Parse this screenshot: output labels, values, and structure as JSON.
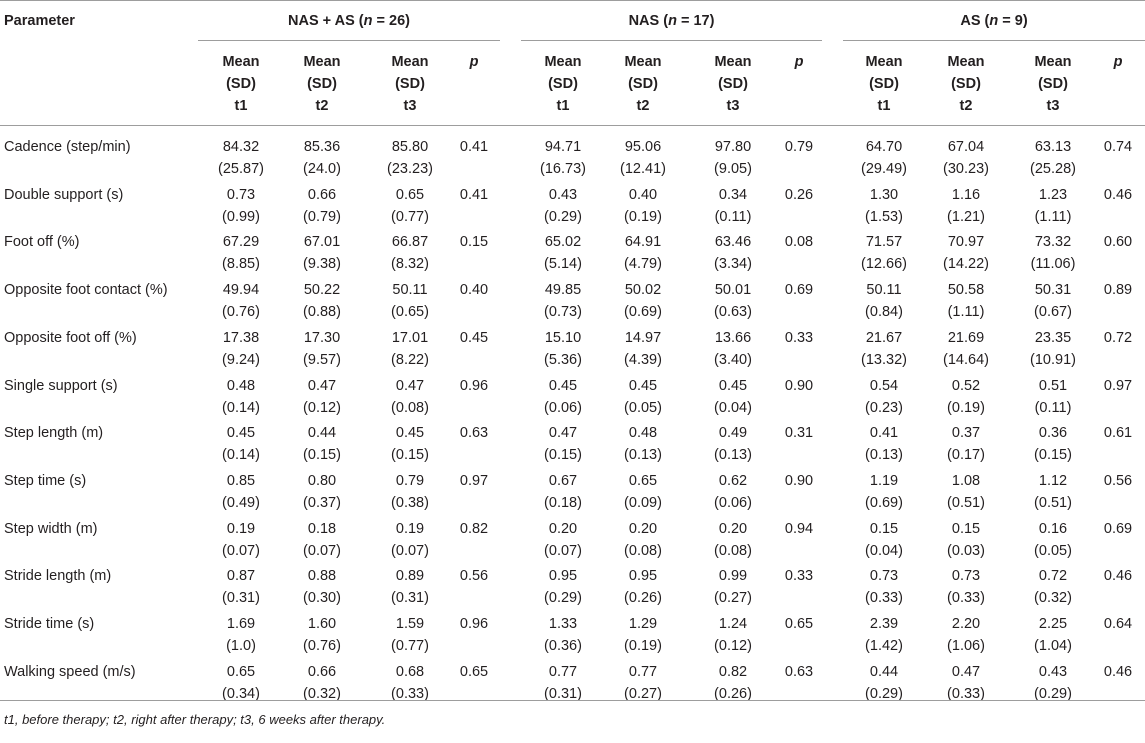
{
  "header": {
    "parameter": "Parameter",
    "groups": [
      {
        "label": "NAS + AS",
        "n_label": "n",
        "n_value": "= 26"
      },
      {
        "label": "NAS",
        "n_label": "n",
        "n_value": "= 17"
      },
      {
        "label": "AS",
        "n_label": "n",
        "n_value": "= 9"
      }
    ],
    "sub": [
      [
        "Mean",
        "(SD)",
        "t1"
      ],
      [
        "Mean",
        "(SD)",
        "t2"
      ],
      [
        "Mean",
        "(SD)",
        "t3"
      ]
    ],
    "p": "p"
  },
  "rows": [
    {
      "name": "Cadence (step/min)",
      "vals": [
        [
          "84.32",
          "(25.87)"
        ],
        [
          "85.36",
          "(24.0)"
        ],
        [
          "85.80",
          "(23.23)"
        ],
        [
          "0.41",
          ""
        ],
        [
          "94.71",
          "(16.73)"
        ],
        [
          "95.06",
          "(12.41)"
        ],
        [
          "97.80",
          "(9.05)"
        ],
        [
          "0.79",
          ""
        ],
        [
          "64.70",
          "(29.49)"
        ],
        [
          "67.04",
          "(30.23)"
        ],
        [
          "63.13",
          "(25.28)"
        ],
        [
          "0.74",
          ""
        ]
      ]
    },
    {
      "name": "Double support (s)",
      "vals": [
        [
          "0.73",
          "(0.99)"
        ],
        [
          "0.66",
          "(0.79)"
        ],
        [
          "0.65",
          "(0.77)"
        ],
        [
          "0.41",
          ""
        ],
        [
          "0.43",
          "(0.29)"
        ],
        [
          "0.40",
          "(0.19)"
        ],
        [
          "0.34",
          "(0.11)"
        ],
        [
          "0.26",
          ""
        ],
        [
          "1.30",
          "(1.53)"
        ],
        [
          "1.16",
          "(1.21)"
        ],
        [
          "1.23",
          "(1.11)"
        ],
        [
          "0.46",
          ""
        ]
      ]
    },
    {
      "name": "Foot off (%)",
      "vals": [
        [
          "67.29",
          "(8.85)"
        ],
        [
          "67.01",
          "(9.38)"
        ],
        [
          "66.87",
          "(8.32)"
        ],
        [
          "0.15",
          ""
        ],
        [
          "65.02",
          "(5.14)"
        ],
        [
          "64.91",
          "(4.79)"
        ],
        [
          "63.46",
          "(3.34)"
        ],
        [
          "0.08",
          ""
        ],
        [
          "71.57",
          "(12.66)"
        ],
        [
          "70.97",
          "(14.22)"
        ],
        [
          "73.32",
          "(11.06)"
        ],
        [
          "0.60",
          ""
        ]
      ]
    },
    {
      "name": "Opposite foot contact (%)",
      "vals": [
        [
          "49.94",
          "(0.76)"
        ],
        [
          "50.22",
          "(0.88)"
        ],
        [
          "50.11",
          "(0.65)"
        ],
        [
          "0.40",
          ""
        ],
        [
          "49.85",
          "(0.73)"
        ],
        [
          "50.02",
          "(0.69)"
        ],
        [
          "50.01",
          "(0.63)"
        ],
        [
          "0.69",
          ""
        ],
        [
          "50.11",
          "(0.84)"
        ],
        [
          "50.58",
          "(1.11)"
        ],
        [
          "50.31",
          "(0.67)"
        ],
        [
          "0.89",
          ""
        ]
      ]
    },
    {
      "name": "Opposite foot off (%)",
      "vals": [
        [
          "17.38",
          "(9.24)"
        ],
        [
          "17.30",
          "(9.57)"
        ],
        [
          "17.01",
          "(8.22)"
        ],
        [
          "0.45",
          ""
        ],
        [
          "15.10",
          "(5.36)"
        ],
        [
          "14.97",
          "(4.39)"
        ],
        [
          "13.66",
          "(3.40)"
        ],
        [
          "0.33",
          ""
        ],
        [
          "21.67",
          "(13.32)"
        ],
        [
          "21.69",
          "(14.64)"
        ],
        [
          "23.35",
          "(10.91)"
        ],
        [
          "0.72",
          ""
        ]
      ]
    },
    {
      "name": "Single support (s)",
      "vals": [
        [
          "0.48",
          "(0.14)"
        ],
        [
          "0.47",
          "(0.12)"
        ],
        [
          "0.47",
          "(0.08)"
        ],
        [
          "0.96",
          ""
        ],
        [
          "0.45",
          "(0.06)"
        ],
        [
          "0.45",
          "(0.05)"
        ],
        [
          "0.45",
          "(0.04)"
        ],
        [
          "0.90",
          ""
        ],
        [
          "0.54",
          "(0.23)"
        ],
        [
          "0.52",
          "(0.19)"
        ],
        [
          "0.51",
          "(0.11)"
        ],
        [
          "0.97",
          ""
        ]
      ]
    },
    {
      "name": "Step length (m)",
      "vals": [
        [
          "0.45",
          "(0.14)"
        ],
        [
          "0.44",
          "(0.15)"
        ],
        [
          "0.45",
          "(0.15)"
        ],
        [
          "0.63",
          ""
        ],
        [
          "0.47",
          "(0.15)"
        ],
        [
          "0.48",
          "(0.13)"
        ],
        [
          "0.49",
          "(0.13)"
        ],
        [
          "0.31",
          ""
        ],
        [
          "0.41",
          "(0.13)"
        ],
        [
          "0.37",
          "(0.17)"
        ],
        [
          "0.36",
          "(0.15)"
        ],
        [
          "0.61",
          ""
        ]
      ]
    },
    {
      "name": "Step time (s)",
      "vals": [
        [
          "0.85",
          "(0.49)"
        ],
        [
          "0.80",
          "(0.37)"
        ],
        [
          "0.79",
          "(0.38)"
        ],
        [
          "0.97",
          ""
        ],
        [
          "0.67",
          "(0.18)"
        ],
        [
          "0.65",
          "(0.09)"
        ],
        [
          "0.62",
          "(0.06)"
        ],
        [
          "0.90",
          ""
        ],
        [
          "1.19",
          "(0.69)"
        ],
        [
          "1.08",
          "(0.51)"
        ],
        [
          "1.12",
          "(0.51)"
        ],
        [
          "0.56",
          ""
        ]
      ]
    },
    {
      "name": "Step width (m)",
      "vals": [
        [
          "0.19",
          "(0.07)"
        ],
        [
          "0.18",
          "(0.07)"
        ],
        [
          "0.19",
          "(0.07)"
        ],
        [
          "0.82",
          ""
        ],
        [
          "0.20",
          "(0.07)"
        ],
        [
          "0.20",
          "(0.08)"
        ],
        [
          "0.20",
          "(0.08)"
        ],
        [
          "0.94",
          ""
        ],
        [
          "0.15",
          "(0.04)"
        ],
        [
          "0.15",
          "(0.03)"
        ],
        [
          "0.16",
          "(0.05)"
        ],
        [
          "0.69",
          ""
        ]
      ]
    },
    {
      "name": "Stride length (m)",
      "vals": [
        [
          "0.87",
          "(0.31)"
        ],
        [
          "0.88",
          "(0.30)"
        ],
        [
          "0.89",
          "(0.31)"
        ],
        [
          "0.56",
          ""
        ],
        [
          "0.95",
          "(0.29)"
        ],
        [
          "0.95",
          "(0.26)"
        ],
        [
          "0.99",
          "(0.27)"
        ],
        [
          "0.33",
          ""
        ],
        [
          "0.73",
          "(0.33)"
        ],
        [
          "0.73",
          "(0.33)"
        ],
        [
          "0.72",
          "(0.32)"
        ],
        [
          "0.46",
          ""
        ]
      ]
    },
    {
      "name": "Stride time (s)",
      "vals": [
        [
          "1.69",
          "(1.0)"
        ],
        [
          "1.60",
          "(0.76)"
        ],
        [
          "1.59",
          "(0.77)"
        ],
        [
          "0.96",
          ""
        ],
        [
          "1.33",
          "(0.36)"
        ],
        [
          "1.29",
          "(0.19)"
        ],
        [
          "1.24",
          "(0.12)"
        ],
        [
          "0.65",
          ""
        ],
        [
          "2.39",
          "(1.42)"
        ],
        [
          "2.20",
          "(1.06)"
        ],
        [
          "2.25",
          "(1.04)"
        ],
        [
          "0.64",
          ""
        ]
      ]
    },
    {
      "name": "Walking speed (m/s)",
      "vals": [
        [
          "0.65",
          "(0.34)"
        ],
        [
          "0.66",
          "(0.32)"
        ],
        [
          "0.68",
          "(0.33)"
        ],
        [
          "0.65",
          ""
        ],
        [
          "0.77",
          "(0.31)"
        ],
        [
          "0.77",
          "(0.27)"
        ],
        [
          "0.82",
          "(0.26)"
        ],
        [
          "0.63",
          ""
        ],
        [
          "0.44",
          "(0.29)"
        ],
        [
          "0.47",
          "(0.33)"
        ],
        [
          "0.43",
          "(0.29)"
        ],
        [
          "0.46",
          ""
        ]
      ]
    }
  ],
  "footnote": "t1, before therapy; t2, right after therapy; t3, 6 weeks after therapy."
}
